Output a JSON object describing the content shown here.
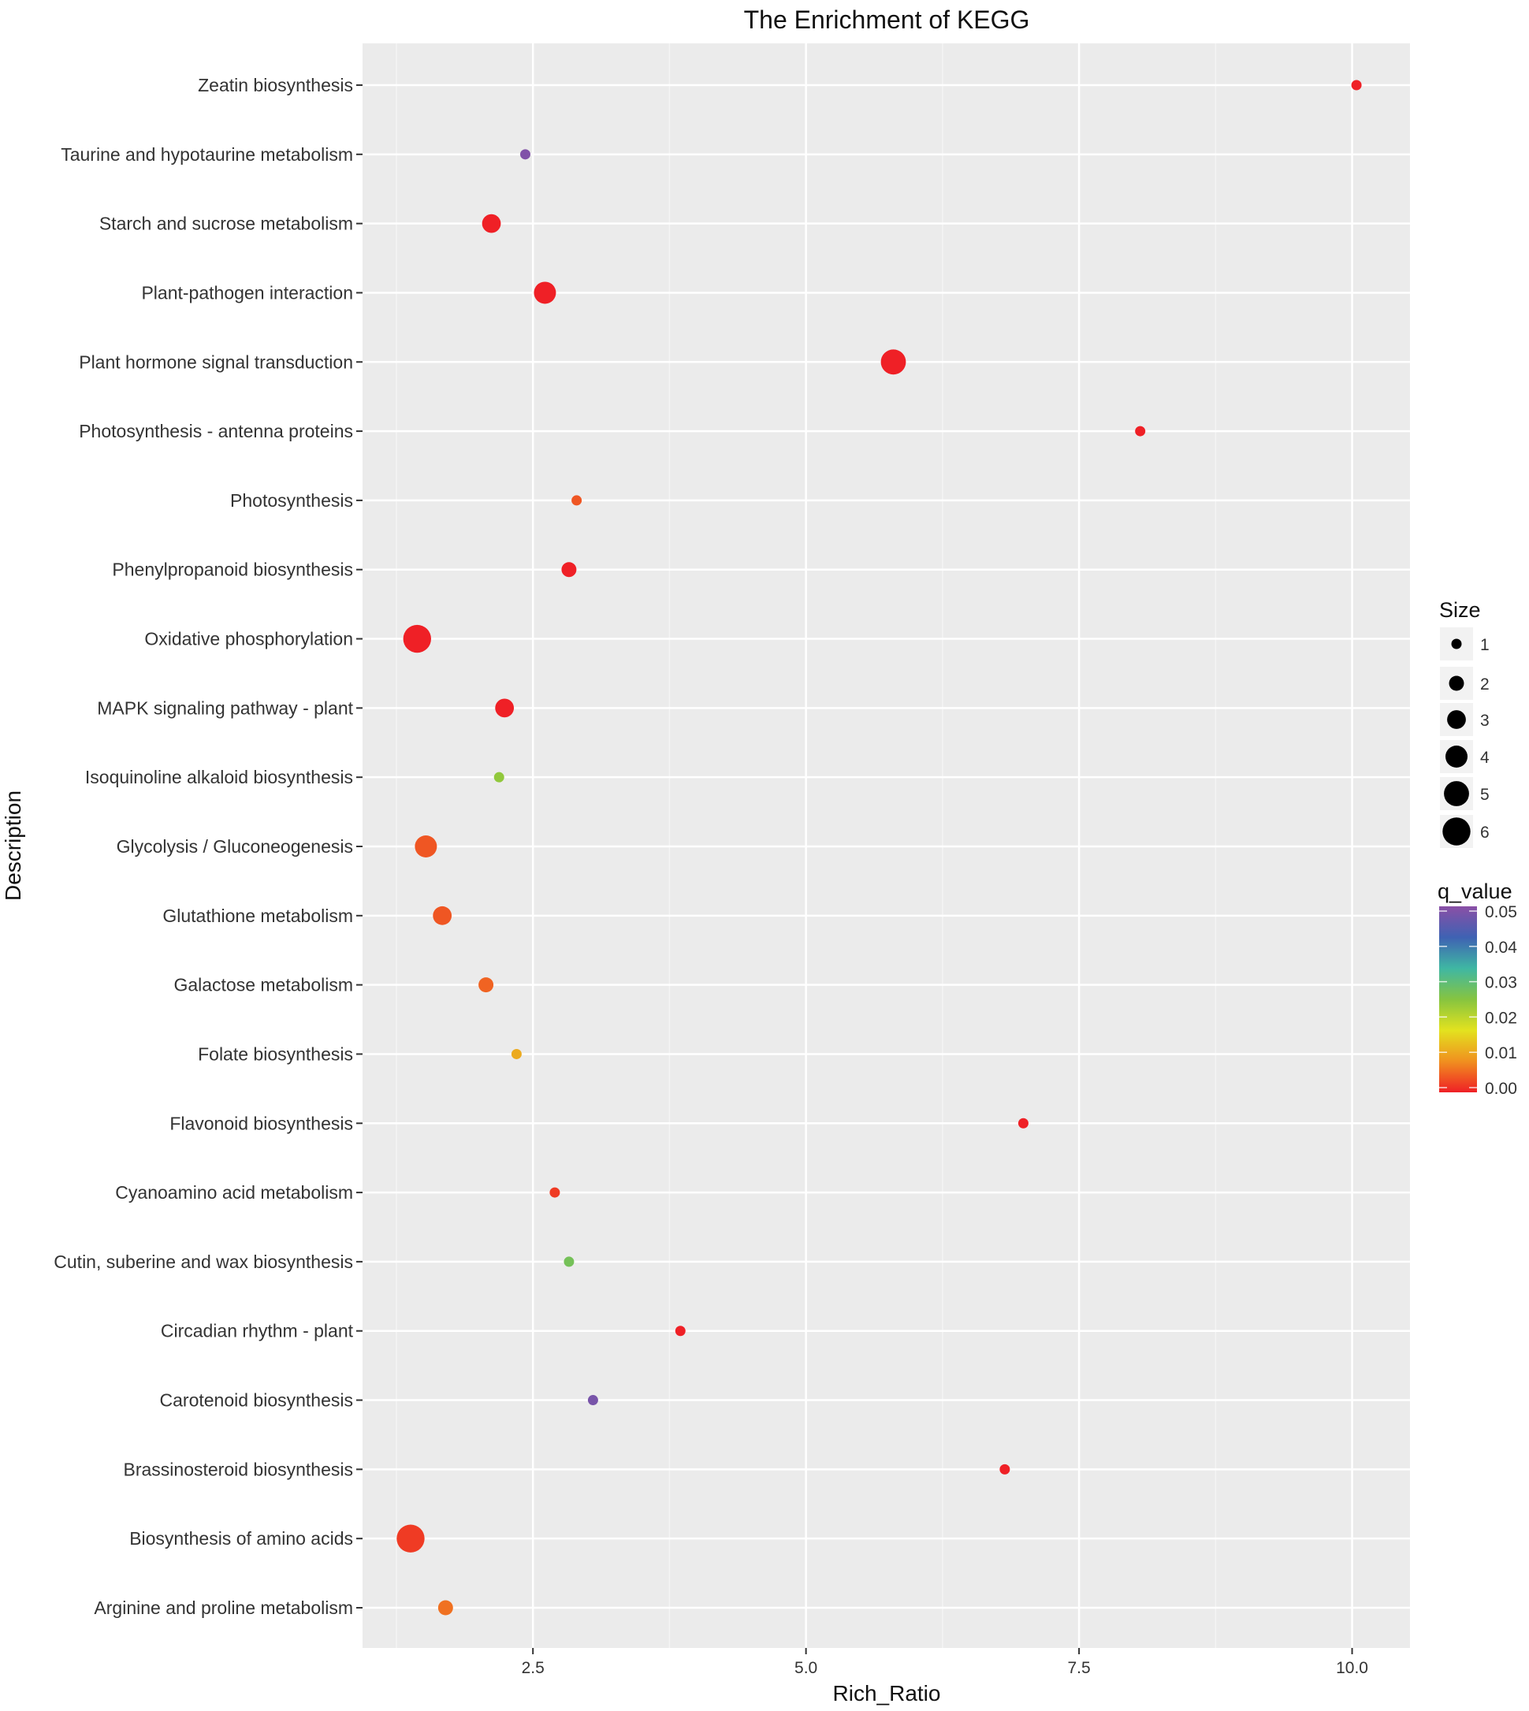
{
  "chart_data": {
    "type": "scatter",
    "title": "The Enrichment of KEGG",
    "xlabel": "Rich_Ratio",
    "ylabel": "Description",
    "xlim": [
      0.94,
      10.53
    ],
    "xticks": [
      2.5,
      5.0,
      7.5,
      10.0
    ],
    "xtick_labels": [
      "2.5",
      "5.0",
      "7.5",
      "10.0"
    ],
    "grid": true,
    "legend_placement": "right",
    "size_legend": {
      "title": "Size",
      "values": [
        1,
        2,
        3,
        4,
        5,
        6
      ],
      "labels": [
        "1",
        "2",
        "3",
        "4",
        "5",
        "6"
      ]
    },
    "color_legend": {
      "title": "q_value",
      "range": [
        0,
        0.05
      ],
      "ticks": [
        0.05,
        0.04,
        0.03,
        0.02,
        0.01,
        0.0
      ],
      "tick_labels": [
        "0.05",
        "0.04",
        "0.03",
        "0.02",
        "0.01",
        "0.00"
      ],
      "colors": [
        "#ef2026",
        "#f0901f",
        "#e3e21f",
        "#86c440",
        "#3fb7a3",
        "#3f62b3",
        "#8a4fa6"
      ]
    },
    "points": [
      {
        "description": "Zeatin biosynthesis",
        "rich_ratio": 10.04,
        "size": 1,
        "q_value": 0.0
      },
      {
        "description": "Taurine and hypotaurine metabolism",
        "rich_ratio": 2.43,
        "size": 1,
        "q_value": 0.049
      },
      {
        "description": "Starch and sucrose metabolism",
        "rich_ratio": 2.12,
        "size": 3,
        "q_value": 0.0
      },
      {
        "description": "Plant-pathogen interaction",
        "rich_ratio": 2.61,
        "size": 4,
        "q_value": 0.0
      },
      {
        "description": "Plant hormone signal transduction",
        "rich_ratio": 5.8,
        "size": 5,
        "q_value": 0.0
      },
      {
        "description": "Photosynthesis - antenna proteins",
        "rich_ratio": 8.06,
        "size": 1,
        "q_value": 0.0
      },
      {
        "description": "Photosynthesis",
        "rich_ratio": 2.9,
        "size": 1,
        "q_value": 0.004
      },
      {
        "description": "Phenylpropanoid biosynthesis",
        "rich_ratio": 2.83,
        "size": 2,
        "q_value": 0.0
      },
      {
        "description": "Oxidative phosphorylation",
        "rich_ratio": 1.44,
        "size": 6,
        "q_value": 0.0
      },
      {
        "description": "MAPK signaling pathway - plant",
        "rich_ratio": 2.24,
        "size": 3,
        "q_value": 0.0
      },
      {
        "description": "Isoquinoline alkaloid biosynthesis",
        "rich_ratio": 2.19,
        "size": 1,
        "q_value": 0.024
      },
      {
        "description": "Glycolysis / Gluconeogenesis",
        "rich_ratio": 1.52,
        "size": 4,
        "q_value": 0.004
      },
      {
        "description": "Glutathione metabolism",
        "rich_ratio": 1.67,
        "size": 3,
        "q_value": 0.004
      },
      {
        "description": "Galactose metabolism",
        "rich_ratio": 2.07,
        "size": 2,
        "q_value": 0.005
      },
      {
        "description": "Folate biosynthesis",
        "rich_ratio": 2.35,
        "size": 1,
        "q_value": 0.011
      },
      {
        "description": "Flavonoid biosynthesis",
        "rich_ratio": 6.99,
        "size": 1,
        "q_value": 0.0
      },
      {
        "description": "Cyanoamino acid metabolism",
        "rich_ratio": 2.7,
        "size": 1,
        "q_value": 0.002
      },
      {
        "description": "Cutin, suberine and wax biosynthesis",
        "rich_ratio": 2.83,
        "size": 1,
        "q_value": 0.027
      },
      {
        "description": "Circadian rhythm - plant",
        "rich_ratio": 3.85,
        "size": 1,
        "q_value": 0.0
      },
      {
        "description": "Carotenoid biosynthesis",
        "rich_ratio": 3.05,
        "size": 1,
        "q_value": 0.048
      },
      {
        "description": "Brassinosteroid biosynthesis",
        "rich_ratio": 6.82,
        "size": 1,
        "q_value": 0.0
      },
      {
        "description": "Biosynthesis of amino acids",
        "rich_ratio": 1.38,
        "size": 6,
        "q_value": 0.002
      },
      {
        "description": "Arginine and proline metabolism",
        "rich_ratio": 1.7,
        "size": 2,
        "q_value": 0.006
      }
    ]
  }
}
